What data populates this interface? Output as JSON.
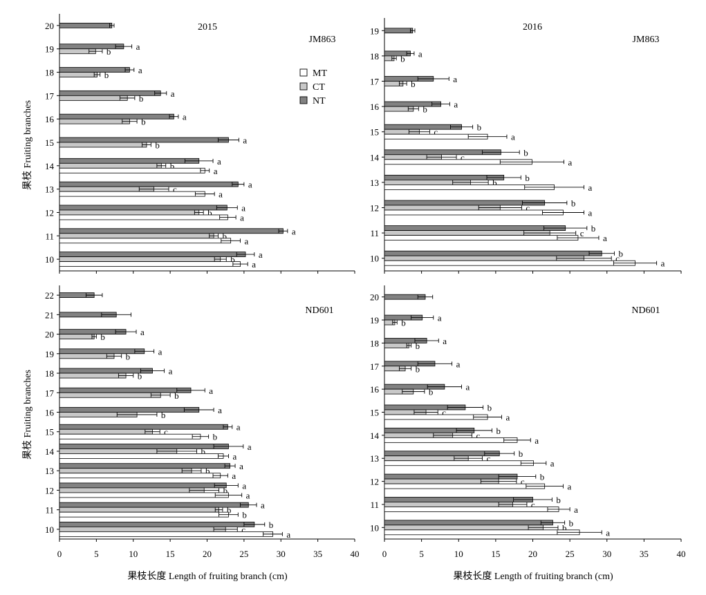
{
  "figure": {
    "xlabel": "果枝长度 Length of fruiting branch (cm)",
    "ylabel": "果枝 Fruiting branches",
    "legend": [
      {
        "name": "MT",
        "color": "#ffffff"
      },
      {
        "name": "CT",
        "color": "#c8c8c8"
      },
      {
        "name": "NT",
        "color": "#828282"
      }
    ],
    "error_bar_note": "whiskers show ± error"
  },
  "chart_data": [
    {
      "type": "bar",
      "orientation": "horizontal",
      "year": "2015",
      "cultivar": "JM863",
      "xlim": [
        0,
        40
      ],
      "xticks": [
        0,
        5,
        10,
        15,
        20,
        25,
        30,
        35,
        40
      ],
      "categories": [
        "10",
        "11",
        "12",
        "13",
        "14",
        "15",
        "16",
        "17",
        "18",
        "19",
        "20"
      ],
      "series": [
        {
          "name": "MT",
          "values": [
            24.5,
            23.2,
            22.8,
            19.7,
            19.7,
            null,
            null,
            null,
            null,
            null,
            null
          ],
          "errors": [
            1.0,
            1.3,
            1.1,
            1.3,
            0.6,
            null,
            null,
            null,
            null,
            null,
            null
          ],
          "letters": [
            "a",
            "a",
            "a",
            "a",
            "a",
            "",
            "",
            "",
            "",
            "",
            ""
          ]
        },
        {
          "name": "CT",
          "values": [
            21.8,
            20.9,
            18.9,
            12.8,
            13.8,
            11.8,
            9.5,
            9.2,
            5.1,
            4.9,
            null
          ],
          "errors": [
            0.8,
            0.6,
            0.6,
            2.0,
            0.6,
            0.6,
            1.0,
            1.0,
            0.4,
            0.9,
            null
          ],
          "letters": [
            "b",
            "b",
            "b",
            "c",
            "b",
            "b",
            "b",
            "b",
            "b",
            "b",
            ""
          ]
        },
        {
          "name": "NT",
          "values": [
            25.2,
            30.3,
            22.7,
            24.2,
            18.9,
            22.9,
            15.5,
            13.7,
            9.5,
            8.7,
            7.1
          ],
          "errors": [
            1.2,
            0.6,
            1.4,
            0.8,
            1.9,
            1.4,
            0.6,
            0.8,
            0.6,
            1.1,
            0.3
          ],
          "letters": [
            "a",
            "a",
            "a",
            "a",
            "a",
            "a",
            "a",
            "a",
            "a",
            "a",
            ""
          ]
        }
      ]
    },
    {
      "type": "bar",
      "orientation": "horizontal",
      "year": "2016",
      "cultivar": "JM863",
      "xlim": [
        0,
        40
      ],
      "xticks": [
        0,
        5,
        10,
        15,
        20,
        25,
        30,
        35,
        40
      ],
      "categories": [
        "10",
        "11",
        "12",
        "13",
        "14",
        "15",
        "16",
        "17",
        "18",
        "19"
      ],
      "series": [
        {
          "name": "MT",
          "values": [
            33.8,
            26.1,
            24.1,
            22.9,
            19.9,
            13.9,
            null,
            null,
            null,
            null
          ],
          "errors": [
            2.9,
            2.8,
            2.8,
            4.0,
            4.3,
            2.6,
            null,
            null,
            null,
            null
          ],
          "letters": [
            "a",
            "a",
            "a",
            "a",
            "a",
            "a",
            "",
            "",
            "",
            ""
          ]
        },
        {
          "name": "CT",
          "values": [
            26.9,
            22.3,
            15.6,
            11.6,
            7.7,
            4.7,
            3.9,
            2.5,
            1.3,
            null
          ],
          "errors": [
            3.7,
            3.5,
            2.9,
            2.4,
            2.0,
            1.4,
            0.7,
            0.5,
            0.3,
            null
          ],
          "letters": [
            "c",
            "c",
            "c",
            "b",
            "c",
            "c",
            "b",
            "b",
            "b",
            ""
          ]
        },
        {
          "name": "NT",
          "values": [
            29.3,
            24.4,
            21.6,
            16.1,
            15.7,
            10.4,
            7.6,
            6.6,
            3.5,
            3.8
          ],
          "errors": [
            1.7,
            2.9,
            3.0,
            2.3,
            2.5,
            1.5,
            1.2,
            2.1,
            0.5,
            0.3
          ],
          "letters": [
            "b",
            "b",
            "b",
            "b",
            "b",
            "b",
            "a",
            "a",
            "a",
            ""
          ]
        }
      ]
    },
    {
      "type": "bar",
      "orientation": "horizontal",
      "year": "",
      "cultivar": "ND601",
      "xlim": [
        0,
        40
      ],
      "xticks": [
        0,
        5,
        10,
        15,
        20,
        25,
        30,
        35,
        40
      ],
      "categories": [
        "10",
        "11",
        "12",
        "13",
        "14",
        "15",
        "16",
        "17",
        "18",
        "19",
        "20",
        "21",
        "22"
      ],
      "series": [
        {
          "name": "MT",
          "values": [
            28.9,
            22.9,
            22.9,
            21.8,
            22.2,
            19.1,
            null,
            null,
            null,
            null,
            null,
            null,
            null
          ],
          "errors": [
            1.3,
            1.3,
            1.8,
            1.0,
            0.7,
            1.1,
            null,
            null,
            null,
            null,
            null,
            null,
            null
          ],
          "letters": [
            "a",
            "b",
            "a",
            "a",
            "a",
            "b",
            "",
            "",
            "",
            "",
            "",
            "",
            ""
          ]
        },
        {
          "name": "CT",
          "values": [
            22.5,
            21.6,
            19.6,
            17.9,
            15.9,
            12.6,
            10.5,
            13.7,
            9.0,
            7.4,
            4.7,
            null,
            null
          ],
          "errors": [
            1.6,
            0.5,
            2.0,
            1.3,
            2.7,
            1.0,
            2.7,
            1.3,
            1.0,
            1.0,
            0.3,
            null,
            null
          ],
          "letters": [
            "c",
            "b",
            "b",
            "b",
            "b",
            "c",
            "b",
            "b",
            "b",
            "b",
            "b",
            "",
            ""
          ]
        },
        {
          "name": "NT",
          "values": [
            26.4,
            25.6,
            22.6,
            23.1,
            22.9,
            22.8,
            18.9,
            17.8,
            12.6,
            11.5,
            9.0,
            7.7,
            4.7
          ],
          "errors": [
            1.4,
            1.1,
            1.6,
            0.7,
            2.0,
            0.6,
            2.0,
            1.9,
            1.6,
            1.3,
            1.4,
            2.0,
            1.1
          ],
          "letters": [
            "b",
            "a",
            "a",
            "a",
            "a",
            "a",
            "a",
            "a",
            "a",
            "a",
            "a",
            "",
            ""
          ]
        }
      ]
    },
    {
      "type": "bar",
      "orientation": "horizontal",
      "year": "",
      "cultivar": "ND601",
      "xlim": [
        0,
        40
      ],
      "xticks": [
        0,
        5,
        10,
        15,
        20,
        25,
        30,
        35,
        40
      ],
      "categories": [
        "10",
        "11",
        "12",
        "13",
        "14",
        "15",
        "16",
        "17",
        "18",
        "19",
        "20"
      ],
      "series": [
        {
          "name": "MT",
          "values": [
            26.3,
            23.5,
            21.6,
            20.1,
            17.9,
            13.9,
            null,
            null,
            null,
            null,
            null
          ],
          "errors": [
            3.0,
            1.5,
            2.5,
            1.7,
            1.8,
            1.9,
            null,
            null,
            null,
            null,
            null
          ],
          "letters": [
            "a",
            "a",
            "a",
            "a",
            "a",
            "a",
            "",
            "",
            "",
            "",
            ""
          ]
        },
        {
          "name": "CT",
          "values": [
            21.4,
            17.3,
            15.4,
            11.3,
            9.2,
            5.6,
            3.9,
            2.8,
            3.3,
            1.4,
            null
          ],
          "errors": [
            2.0,
            1.9,
            2.4,
            1.9,
            2.6,
            1.6,
            1.5,
            0.8,
            0.3,
            0.3,
            null
          ],
          "letters": [
            "b",
            "c",
            "c",
            "c",
            "c",
            "c",
            "b",
            "b",
            "b",
            "b",
            ""
          ]
        },
        {
          "name": "NT",
          "values": [
            22.7,
            20.0,
            17.9,
            15.5,
            12.1,
            10.9,
            8.1,
            6.8,
            5.7,
            5.1,
            5.5
          ],
          "errors": [
            1.6,
            2.6,
            2.5,
            2.0,
            2.4,
            2.4,
            2.3,
            2.3,
            1.6,
            1.5,
            1.0
          ],
          "letters": [
            "b",
            "b",
            "b",
            "b",
            "b",
            "b",
            "a",
            "a",
            "a",
            "a",
            ""
          ]
        }
      ]
    }
  ]
}
